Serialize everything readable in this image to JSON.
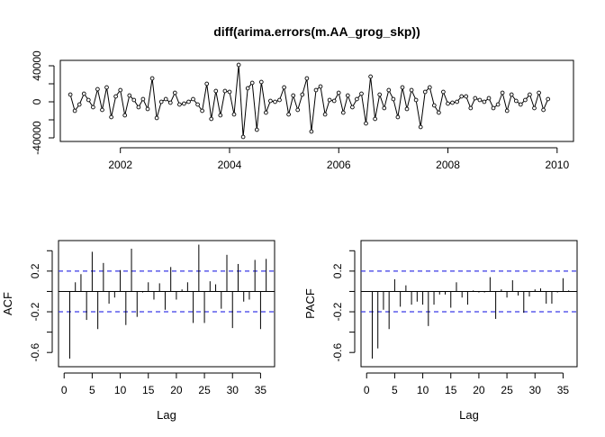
{
  "figure": {
    "title": "diff(arima.errors(m.AA_grog_skp))"
  },
  "chart_data": [
    {
      "id": "ts",
      "type": "line",
      "title": "diff(arima.errors(m.AA_grog_skp))",
      "xlabel": "",
      "ylabel": "",
      "xlim": [
        2000.9,
        2010.3
      ],
      "ylim": [
        -44000,
        46000
      ],
      "xticks": [
        2002,
        2004,
        2006,
        2008,
        2010
      ],
      "yticks": [
        -40000,
        0,
        40000
      ],
      "ytick_minor": [
        -20000,
        20000
      ],
      "x_start": 2001.083,
      "x_step": 0.08333,
      "y": [
        8000,
        -10000,
        -3000,
        9000,
        2000,
        -6000,
        14000,
        -9000,
        16000,
        -17000,
        6000,
        13000,
        -15000,
        7000,
        2000,
        -6000,
        3000,
        -8000,
        26000,
        -18000,
        0,
        3000,
        -1000,
        10000,
        -3000,
        -2000,
        0,
        3000,
        -3000,
        -10000,
        20000,
        -19000,
        12000,
        -15000,
        12000,
        11000,
        -14000,
        41000,
        -39000,
        15000,
        21000,
        -31000,
        22000,
        -12000,
        1000,
        0,
        2000,
        16000,
        -14000,
        7000,
        -9000,
        8000,
        26000,
        -33000,
        13000,
        17000,
        -14000,
        2000,
        1000,
        10000,
        -12000,
        7000,
        -6000,
        3000,
        9000,
        -24000,
        28000,
        -19000,
        8000,
        -7000,
        13000,
        3000,
        -17000,
        16000,
        -8000,
        13000,
        2000,
        -28000,
        11000,
        16000,
        -4000,
        -12000,
        11000,
        -2000,
        -1000,
        0,
        6000,
        6000,
        -7000,
        4000,
        2000,
        0,
        4000,
        -7000,
        -3000,
        10000,
        -10000,
        8000,
        1000,
        -3000,
        2000,
        8000,
        -7000,
        10000,
        -9000,
        3000
      ]
    },
    {
      "id": "acf",
      "type": "bar",
      "title": "",
      "xlabel": "Lag",
      "ylabel": "ACF",
      "xlim": [
        -1,
        37.5
      ],
      "ylim": [
        -0.74,
        0.5
      ],
      "xticks": [
        0,
        5,
        10,
        15,
        20,
        25,
        30,
        35
      ],
      "yticks": [
        -0.6,
        -0.2,
        0.2
      ],
      "ytick_minor": [
        -0.4,
        0,
        0.4
      ],
      "ci": 0.2,
      "lags": [
        1,
        2,
        3,
        4,
        5,
        6,
        7,
        8,
        9,
        10,
        11,
        12,
        13,
        14,
        15,
        16,
        17,
        18,
        19,
        20,
        21,
        22,
        23,
        24,
        25,
        26,
        27,
        28,
        29,
        30,
        31,
        32,
        33,
        34,
        35,
        36
      ],
      "values": [
        -0.66,
        0.09,
        0.17,
        -0.28,
        0.39,
        -0.37,
        0.28,
        -0.12,
        -0.06,
        0.21,
        -0.33,
        0.42,
        -0.25,
        -0.01,
        0.09,
        -0.08,
        0.08,
        -0.18,
        0.24,
        -0.08,
        0.02,
        0.09,
        -0.31,
        0.46,
        -0.31,
        0.1,
        0.07,
        -0.17,
        0.36,
        -0.36,
        0.27,
        -0.1,
        -0.08,
        0.31,
        -0.37,
        0.32
      ]
    },
    {
      "id": "pacf",
      "type": "bar",
      "title": "",
      "xlabel": "Lag",
      "ylabel": "PACF",
      "xlim": [
        -1,
        37.5
      ],
      "ylim": [
        -0.74,
        0.5
      ],
      "xticks": [
        0,
        5,
        10,
        15,
        20,
        25,
        30,
        35
      ],
      "yticks": [
        -0.6,
        -0.2,
        0.2
      ],
      "ytick_minor": [
        -0.4,
        0,
        0.4
      ],
      "ci": 0.2,
      "lags": [
        1,
        2,
        3,
        4,
        5,
        6,
        7,
        8,
        9,
        10,
        11,
        12,
        13,
        14,
        15,
        16,
        17,
        18,
        19,
        20,
        21,
        22,
        23,
        24,
        25,
        26,
        27,
        28,
        29,
        30,
        31,
        32,
        33,
        34,
        35,
        36
      ],
      "values": [
        -0.66,
        -0.56,
        -0.18,
        -0.37,
        0.12,
        -0.15,
        0.06,
        -0.13,
        -0.1,
        -0.13,
        -0.34,
        -0.13,
        -0.03,
        -0.03,
        -0.16,
        0.09,
        -0.06,
        -0.13,
        0.01,
        -0.01,
        -0.01,
        0.14,
        -0.27,
        0.02,
        -0.06,
        0.11,
        -0.04,
        -0.21,
        -0.05,
        0.02,
        0.03,
        -0.12,
        -0.12,
        -0.01,
        0.13,
        0.01
      ]
    }
  ]
}
